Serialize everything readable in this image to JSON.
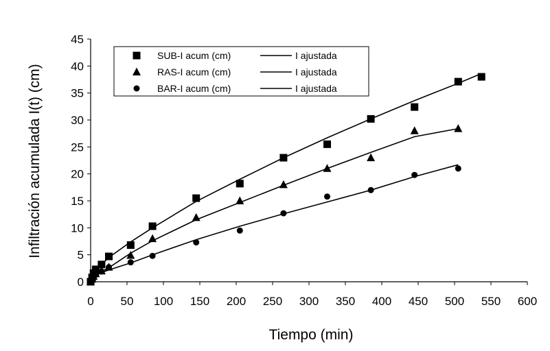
{
  "chart_data": {
    "type": "scatter",
    "title": "",
    "xlabel": "Tiempo (min)",
    "ylabel": "Infiltración acumulada I(t) (cm)",
    "xlim": [
      0,
      600
    ],
    "ylim": [
      0,
      45
    ],
    "xticks": [
      0,
      50,
      100,
      150,
      200,
      250,
      300,
      350,
      400,
      450,
      500,
      550,
      600
    ],
    "yticks": [
      0,
      5,
      10,
      15,
      20,
      25,
      30,
      35,
      40,
      45
    ],
    "grid": false,
    "legend_position": "top-left",
    "series": [
      {
        "name": "SUB-I acum (cm)",
        "marker": "square",
        "fit_name": "I ajustada",
        "points": [
          [
            0,
            0
          ],
          [
            2,
            0.8
          ],
          [
            4,
            1.6
          ],
          [
            7,
            2.3
          ],
          [
            15,
            3.2
          ],
          [
            25,
            4.7
          ],
          [
            55,
            6.8
          ],
          [
            85,
            10.3
          ],
          [
            145,
            15.5
          ],
          [
            205,
            18.2
          ],
          [
            265,
            23
          ],
          [
            325,
            25.5
          ],
          [
            385,
            30.2
          ],
          [
            445,
            32.4
          ],
          [
            505,
            37.1
          ],
          [
            537,
            38
          ]
        ],
        "fit": [
          [
            0,
            0
          ],
          [
            2,
            0.8
          ],
          [
            4,
            1.5
          ],
          [
            7,
            2.1
          ],
          [
            15,
            3.2
          ],
          [
            25,
            4.5
          ],
          [
            55,
            7.4
          ],
          [
            85,
            10
          ],
          [
            145,
            14.9
          ],
          [
            205,
            19
          ],
          [
            265,
            23
          ],
          [
            325,
            26.7
          ],
          [
            385,
            30.2
          ],
          [
            445,
            33.6
          ],
          [
            505,
            36.8
          ],
          [
            537,
            38.6
          ]
        ]
      },
      {
        "name": "RAS-I acum (cm)",
        "marker": "triangle",
        "fit_name": "I ajustada",
        "points": [
          [
            0,
            0
          ],
          [
            2,
            0.5
          ],
          [
            4,
            1
          ],
          [
            7,
            1.5
          ],
          [
            15,
            2
          ],
          [
            25,
            2.7
          ],
          [
            55,
            4.9
          ],
          [
            85,
            8
          ],
          [
            145,
            11.9
          ],
          [
            205,
            15
          ],
          [
            265,
            18
          ],
          [
            325,
            21
          ],
          [
            385,
            23
          ],
          [
            445,
            28
          ],
          [
            505,
            28.4
          ]
        ],
        "fit": [
          [
            0,
            0
          ],
          [
            2,
            0.4
          ],
          [
            4,
            0.8
          ],
          [
            7,
            1.3
          ],
          [
            15,
            1.9
          ],
          [
            25,
            2.6
          ],
          [
            55,
            5.3
          ],
          [
            85,
            7.6
          ],
          [
            145,
            11.5
          ],
          [
            205,
            14.7
          ],
          [
            265,
            17.9
          ],
          [
            325,
            21
          ],
          [
            385,
            24
          ],
          [
            445,
            26.9
          ],
          [
            505,
            28.4
          ]
        ]
      },
      {
        "name": "BAR-I acum (cm)",
        "marker": "circle",
        "fit_name": "I ajustada",
        "points": [
          [
            0,
            0
          ],
          [
            2,
            0.4
          ],
          [
            4,
            0.8
          ],
          [
            7,
            1.3
          ],
          [
            15,
            1.9
          ],
          [
            25,
            2.7
          ],
          [
            55,
            3.6
          ],
          [
            85,
            4.8
          ],
          [
            145,
            7.3
          ],
          [
            205,
            9.5
          ],
          [
            265,
            12.7
          ],
          [
            325,
            15.8
          ],
          [
            385,
            17
          ],
          [
            445,
            19.8
          ],
          [
            505,
            21
          ]
        ],
        "fit": [
          [
            0,
            0
          ],
          [
            2,
            0.4
          ],
          [
            4,
            0.8
          ],
          [
            7,
            1.2
          ],
          [
            15,
            1.7
          ],
          [
            25,
            2.2
          ],
          [
            55,
            3.5
          ],
          [
            85,
            5
          ],
          [
            145,
            7.8
          ],
          [
            205,
            10.3
          ],
          [
            265,
            12.6
          ],
          [
            325,
            14.8
          ],
          [
            385,
            17
          ],
          [
            445,
            19.5
          ],
          [
            505,
            21.7
          ]
        ]
      }
    ]
  }
}
